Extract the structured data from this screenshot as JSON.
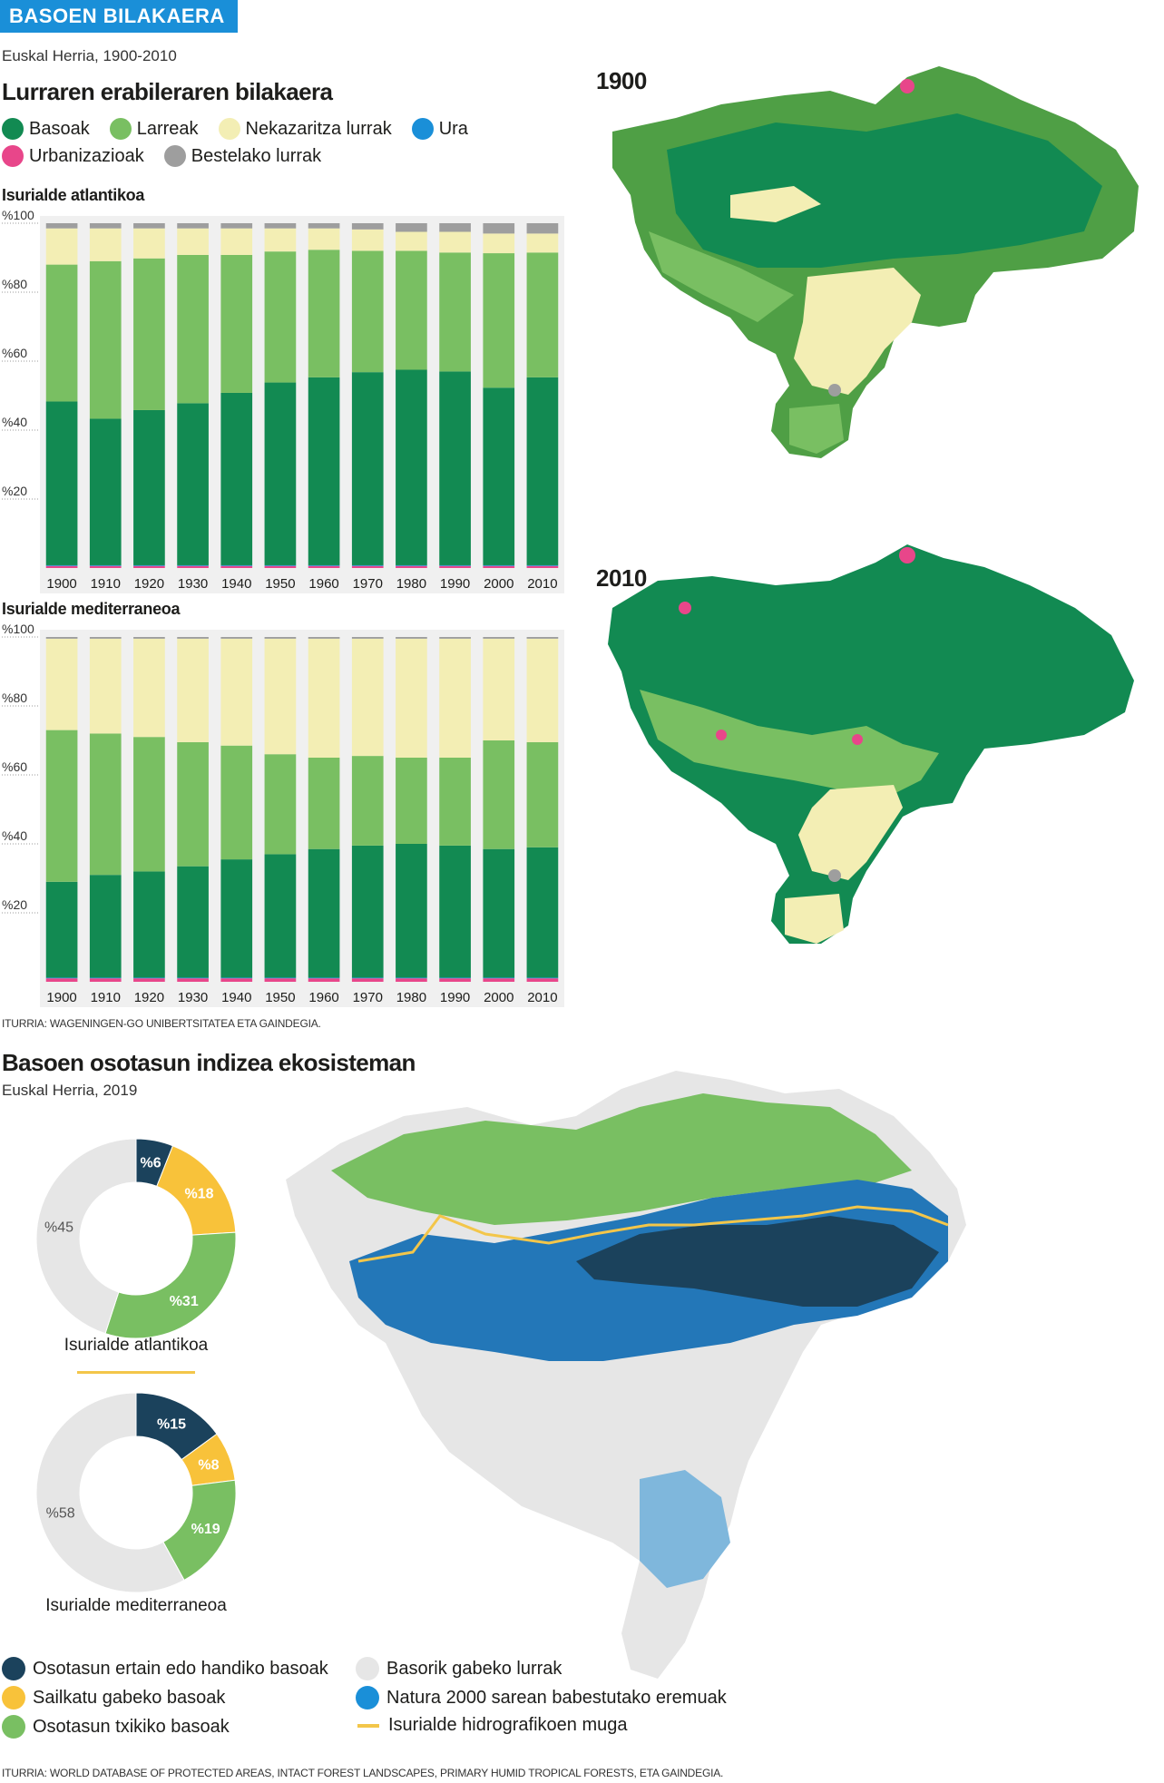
{
  "header": {
    "banner": "BASOEN BILAKAERA",
    "subtitle": "Euskal Herria, 1900-2010",
    "title": "Lurraren erabileraren bilakaera"
  },
  "legend_top": [
    {
      "label": "Basoak",
      "color": "#128a52"
    },
    {
      "label": "Larreak",
      "color": "#79bf62"
    },
    {
      "label": "Nekazaritza lurrak",
      "color": "#f3eeb4"
    },
    {
      "label": "Ura",
      "color": "#1a8fd8"
    },
    {
      "label": "Urbanizazioak",
      "color": "#e8468a"
    },
    {
      "label": "Bestelako lurrak",
      "color": "#9e9e9e"
    }
  ],
  "chart_data": [
    {
      "type": "bar",
      "stacked": true,
      "title": "Isurialde atlantikoa",
      "categories": [
        "1900",
        "1910",
        "1920",
        "1930",
        "1940",
        "1950",
        "1960",
        "1970",
        "1980",
        "1990",
        "2000",
        "2010"
      ],
      "yticks": [
        "%100",
        "%80",
        "%60",
        "%40",
        "%20"
      ],
      "ylim": [
        0,
        100
      ],
      "series": [
        {
          "name": "Urbanizazioak",
          "color": "#e8468a",
          "values": [
            0.6,
            0.6,
            0.6,
            0.6,
            0.6,
            0.6,
            0.6,
            0.6,
            0.6,
            0.6,
            0.6,
            0.6
          ]
        },
        {
          "name": "Ura",
          "color": "#1a8fd8",
          "values": [
            0.2,
            0.2,
            0.2,
            0.2,
            0.2,
            0.2,
            0.2,
            0.2,
            0.2,
            0.2,
            0.2,
            0.2
          ]
        },
        {
          "name": "Basoak",
          "color": "#128a52",
          "values": [
            47.5,
            42.5,
            45,
            47,
            50,
            53,
            54.5,
            56,
            56.7,
            56.2,
            51.5,
            54.5
          ]
        },
        {
          "name": "Larreak",
          "color": "#79bf62",
          "values": [
            39.7,
            45.7,
            44,
            43,
            40,
            38,
            37,
            35.2,
            34.5,
            34.5,
            39,
            36.2
          ]
        },
        {
          "name": "Nekazaritza lurrak",
          "color": "#f3eeb4",
          "values": [
            10.5,
            9.5,
            8.7,
            7.7,
            7.7,
            6.7,
            6.2,
            6.2,
            5.5,
            6,
            5.7,
            5.5
          ]
        },
        {
          "name": "Bestelako lurrak",
          "color": "#9e9e9e",
          "values": [
            1.5,
            1.5,
            1.5,
            1.5,
            1.5,
            1.5,
            1.5,
            1.8,
            2.5,
            2.5,
            3,
            3
          ]
        }
      ]
    },
    {
      "type": "bar",
      "stacked": true,
      "title": "Isurialde mediterraneoa",
      "categories": [
        "1900",
        "1910",
        "1920",
        "1930",
        "1940",
        "1950",
        "1960",
        "1970",
        "1980",
        "1990",
        "2000",
        "2010"
      ],
      "yticks": [
        "%100",
        "%80",
        "%60",
        "%40",
        "%20"
      ],
      "ylim": [
        0,
        100
      ],
      "series": [
        {
          "name": "Urbanizazioak",
          "color": "#e8468a",
          "values": [
            1,
            1,
            1,
            1,
            1,
            1,
            1,
            1,
            1,
            1,
            1,
            1
          ]
        },
        {
          "name": "Ura",
          "color": "#1a8fd8",
          "values": [
            0.2,
            0.2,
            0.2,
            0.2,
            0.2,
            0.2,
            0.2,
            0.2,
            0.2,
            0.2,
            0.2,
            0.2
          ]
        },
        {
          "name": "Basoak",
          "color": "#128a52",
          "values": [
            27.8,
            29.8,
            30.8,
            32.3,
            34.3,
            35.8,
            37.3,
            38.3,
            38.8,
            38.3,
            37.3,
            37.8
          ]
        },
        {
          "name": "Larreak",
          "color": "#79bf62",
          "values": [
            44,
            41,
            39,
            36,
            33,
            29,
            26.5,
            26,
            25,
            25.5,
            31.5,
            30.5
          ]
        },
        {
          "name": "Nekazaritza lurrak",
          "color": "#f3eeb4",
          "values": [
            26.5,
            27.5,
            28.5,
            30,
            31,
            33.5,
            34.5,
            34,
            34.5,
            34.5,
            29.5,
            30
          ]
        },
        {
          "name": "Bestelako lurrak",
          "color": "#9e9e9e",
          "values": [
            0.5,
            0.5,
            0.5,
            0.5,
            0.5,
            0.5,
            0.5,
            0.5,
            0.5,
            0.5,
            0.5,
            0.5
          ]
        }
      ]
    },
    {
      "type": "pie",
      "donut": true,
      "title": "Isurialde atlantikoa",
      "labels": [
        "%6",
        "%18",
        "%31",
        "%45"
      ],
      "values": [
        6,
        18,
        31,
        45
      ],
      "colors": [
        "#1b425c",
        "#f8c23a",
        "#79bf62",
        "#e6e6e6"
      ]
    },
    {
      "type": "pie",
      "donut": true,
      "title": "Isurialde mediterraneoa",
      "labels": [
        "%15",
        "%8",
        "%19",
        "%58"
      ],
      "values": [
        15,
        8,
        19,
        58
      ],
      "colors": [
        "#1b425c",
        "#f8c23a",
        "#79bf62",
        "#e6e6e6"
      ]
    }
  ],
  "source1": "ITURRIA: WAGENINGEN-GO UNIBERTSITATEA ETA GAINDEGIA.",
  "maps": {
    "year1": "1900",
    "year2": "2010"
  },
  "section2": {
    "title": "Basoen osotasun indizea ekosisteman",
    "subtitle": "Euskal Herria, 2019"
  },
  "legend_bottom": [
    {
      "label": "Osotasun ertain edo handiko basoak",
      "color": "#1b425c",
      "shape": "dot"
    },
    {
      "label": "Basorik gabeko lurrak",
      "color": "#e6e6e6",
      "shape": "dot"
    },
    {
      "label": "Sailkatu gabeko basoak",
      "color": "#f8c23a",
      "shape": "dot"
    },
    {
      "label": "Natura 2000 sarean babestutako eremuak",
      "color": "#1a8fd8",
      "shape": "dot"
    },
    {
      "label": "Osotasun txikiko basoak",
      "color": "#79bf62",
      "shape": "dot"
    },
    {
      "label": "Isurialde hidrografikoen muga",
      "color": "#f3c64a",
      "shape": "line"
    }
  ],
  "source2": "ITURRIA: WORLD DATABASE OF PROTECTED AREAS, INTACT FOREST LANDSCAPES, PRIMARY HUMID TROPICAL FORESTS, ETA GAINDEGIA."
}
